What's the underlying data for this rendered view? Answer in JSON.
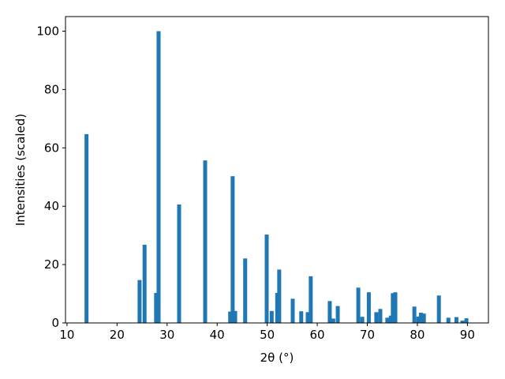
{
  "chart_data": {
    "type": "bar",
    "xlabel": "2θ (°)",
    "ylabel": "Intensities (scaled)",
    "x": [
      13.9,
      24.5,
      25.5,
      27.8,
      28.3,
      32.4,
      37.6,
      42.6,
      43.1,
      43.6,
      45.6,
      49.9,
      50.9,
      52.0,
      52.4,
      55.1,
      56.8,
      58.1,
      58.7,
      62.5,
      63.2,
      64.1,
      68.2,
      69.0,
      70.3,
      71.8,
      72.6,
      74.0,
      74.7,
      75.1,
      75.6,
      79.4,
      80.2,
      80.7,
      81.3,
      84.3,
      86.2,
      87.8,
      89.0,
      89.8
    ],
    "values": [
      64.7,
      14.7,
      26.8,
      10.3,
      100,
      40.6,
      55.7,
      3.9,
      50.3,
      4.1,
      22.1,
      30.3,
      4.1,
      10.3,
      18.3,
      8.3,
      4.0,
      3.7,
      16.0,
      7.5,
      1.5,
      5.8,
      12.1,
      2.1,
      10.5,
      3.7,
      4.8,
      1.8,
      2.5,
      10.2,
      10.5,
      5.6,
      2.2,
      3.5,
      3.2,
      9.4,
      1.8,
      2.0,
      0.8,
      1.6
    ],
    "color": "#1f77b4",
    "xlim": [
      9.7,
      94.2
    ],
    "xticks": [
      10,
      20,
      30,
      40,
      50,
      60,
      70,
      80,
      90
    ],
    "ylim": [
      0,
      105
    ],
    "yticks": [
      0,
      20,
      40,
      60,
      80,
      100
    ]
  }
}
